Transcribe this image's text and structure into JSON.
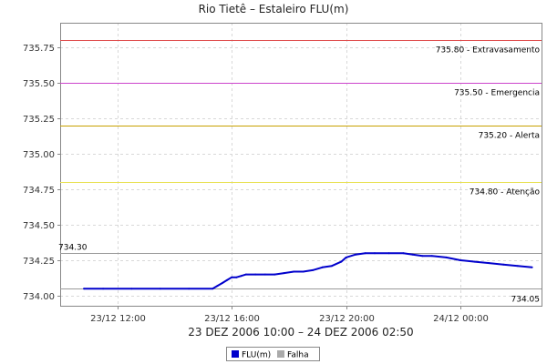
{
  "chart_data": {
    "type": "line",
    "title": "Rio Tietê – Estaleiro FLU(m)",
    "xlabel": "23 DEZ 2006 10:00 – 24 DEZ 2006 02:50",
    "ylabel": "",
    "x_range_hours": [
      10.0,
      26.833
    ],
    "ylim": [
      733.93,
      735.92
    ],
    "yticks": [
      734.0,
      734.25,
      734.5,
      734.75,
      735.0,
      735.25,
      735.5,
      735.75
    ],
    "ytick_labels": [
      "734.00",
      "734.25",
      "734.50",
      "734.75",
      "735.00",
      "735.25",
      "735.50",
      "735.75"
    ],
    "xticks": [
      {
        "h": 12,
        "label": "23/12 12:00"
      },
      {
        "h": 16,
        "label": "23/12 16:00"
      },
      {
        "h": 20,
        "label": "23/12 20:00"
      },
      {
        "h": 24,
        "label": "24/12 00:00"
      }
    ],
    "grid": true,
    "reference_lines": [
      {
        "value": 735.8,
        "label": "735.80 - Extravasamento",
        "color": "#e05050"
      },
      {
        "value": 735.5,
        "label": "735.50 - Emergencia",
        "color": "#cc44cc"
      },
      {
        "value": 735.2,
        "label": "735.20 - Alerta",
        "color": "#c8a000"
      },
      {
        "value": 734.8,
        "label": "734.80 - Atenção",
        "color": "#e8e050"
      }
    ],
    "min_max_lines": [
      {
        "value": 734.3,
        "label": "734.30",
        "label_side": "left",
        "color": "#999999"
      },
      {
        "value": 734.05,
        "label": "734.05",
        "label_side": "right",
        "color": "#999999"
      }
    ],
    "series": [
      {
        "name": "FLU(m)",
        "color": "#0000cc",
        "x": [
          10.83,
          11.5,
          12.5,
          13.5,
          14.5,
          15.33,
          15.5,
          15.67,
          15.83,
          16.0,
          16.17,
          16.33,
          16.5,
          16.83,
          17.17,
          17.5,
          17.83,
          18.17,
          18.5,
          18.83,
          19.17,
          19.5,
          19.83,
          20.0,
          20.33,
          20.67,
          21.0,
          21.5,
          22.0,
          22.33,
          22.67,
          23.0,
          23.5,
          24.0,
          24.5,
          25.0,
          25.5,
          26.0,
          26.5
        ],
        "values": [
          734.05,
          734.05,
          734.05,
          734.05,
          734.05,
          734.05,
          734.07,
          734.09,
          734.11,
          734.13,
          734.13,
          734.14,
          734.15,
          734.15,
          734.15,
          734.15,
          734.16,
          734.17,
          734.17,
          734.18,
          734.2,
          734.21,
          734.24,
          734.27,
          734.29,
          734.3,
          734.3,
          734.3,
          734.3,
          734.29,
          734.28,
          734.28,
          734.27,
          734.25,
          734.24,
          734.23,
          734.22,
          734.21,
          734.2
        ]
      }
    ],
    "legend": {
      "placement": "bottom-center",
      "items": [
        {
          "label": "FLU(m)",
          "color": "#0000cc"
        },
        {
          "label": "Falha",
          "color": "#aaaaaa"
        }
      ]
    }
  }
}
